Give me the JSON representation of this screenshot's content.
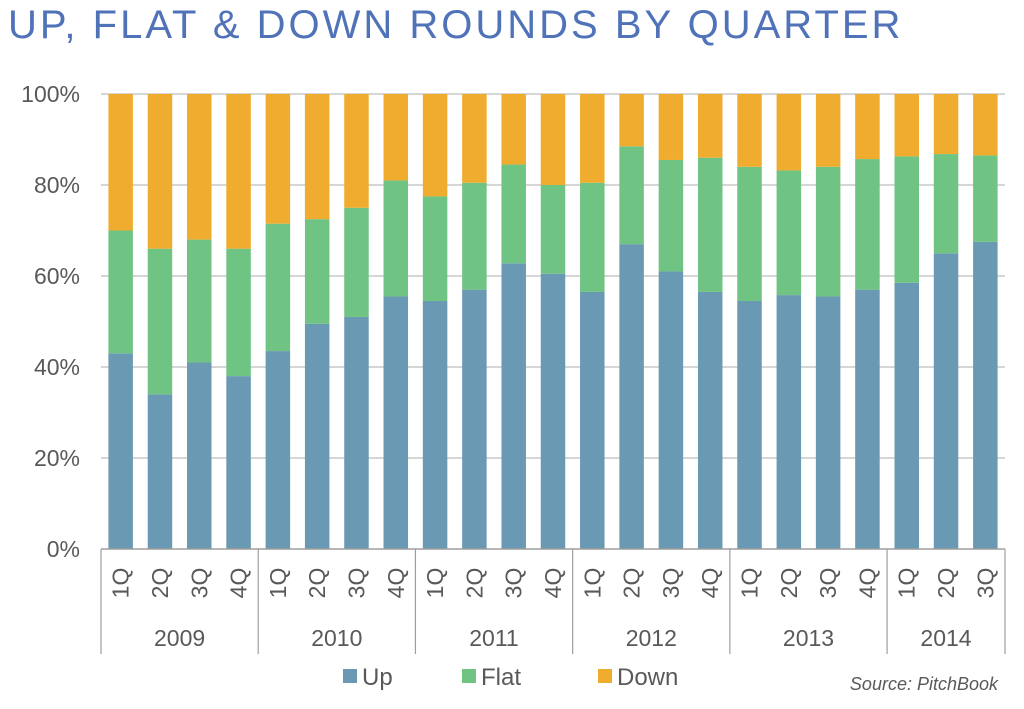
{
  "chart_data": {
    "type": "bar",
    "stacked": true,
    "title": "UP, FLAT & DOWN ROUNDS BY QUARTER",
    "source": "Source: PitchBook",
    "categories": [
      "1Q",
      "2Q",
      "3Q",
      "4Q",
      "1Q",
      "2Q",
      "3Q",
      "4Q",
      "1Q",
      "2Q",
      "3Q",
      "4Q",
      "1Q",
      "2Q",
      "3Q",
      "4Q",
      "1Q",
      "2Q",
      "3Q",
      "4Q",
      "1Q",
      "2Q",
      "3Q"
    ],
    "groups": [
      {
        "label": "2009",
        "count": 4
      },
      {
        "label": "2010",
        "count": 4
      },
      {
        "label": "2011",
        "count": 4
      },
      {
        "label": "2012",
        "count": 4
      },
      {
        "label": "2013",
        "count": 4
      },
      {
        "label": "2014",
        "count": 3
      }
    ],
    "series": [
      {
        "name": "Up",
        "color": "#6a9ab3",
        "values": [
          43,
          34,
          41,
          38,
          43.5,
          49.5,
          51,
          55.5,
          54.5,
          57,
          62.8,
          60.5,
          56.5,
          67,
          61,
          56.5,
          54.5,
          55.8,
          55.5,
          57,
          58.5,
          65,
          67.5
        ]
      },
      {
        "name": "Flat",
        "color": "#6fc383",
        "values": [
          27,
          32,
          27,
          28,
          28,
          23,
          24,
          25.5,
          23,
          23.5,
          21.7,
          19.5,
          24,
          21.5,
          24.5,
          29.5,
          29.5,
          27.4,
          28.5,
          28.7,
          27.8,
          21.8,
          19
        ]
      },
      {
        "name": "Down",
        "color": "#f0ac2e",
        "values": [
          30,
          34,
          32,
          34,
          28.5,
          27.5,
          25,
          19,
          22.5,
          19.5,
          15.5,
          20,
          19.5,
          11.5,
          14.5,
          14,
          16,
          16.8,
          16,
          14.3,
          13.7,
          13.2,
          13.5
        ]
      }
    ],
    "yticks": [
      "0%",
      "20%",
      "40%",
      "60%",
      "80%",
      "100%"
    ],
    "ylim": [
      0,
      100
    ],
    "grid": true,
    "legend_position": "bottom"
  }
}
